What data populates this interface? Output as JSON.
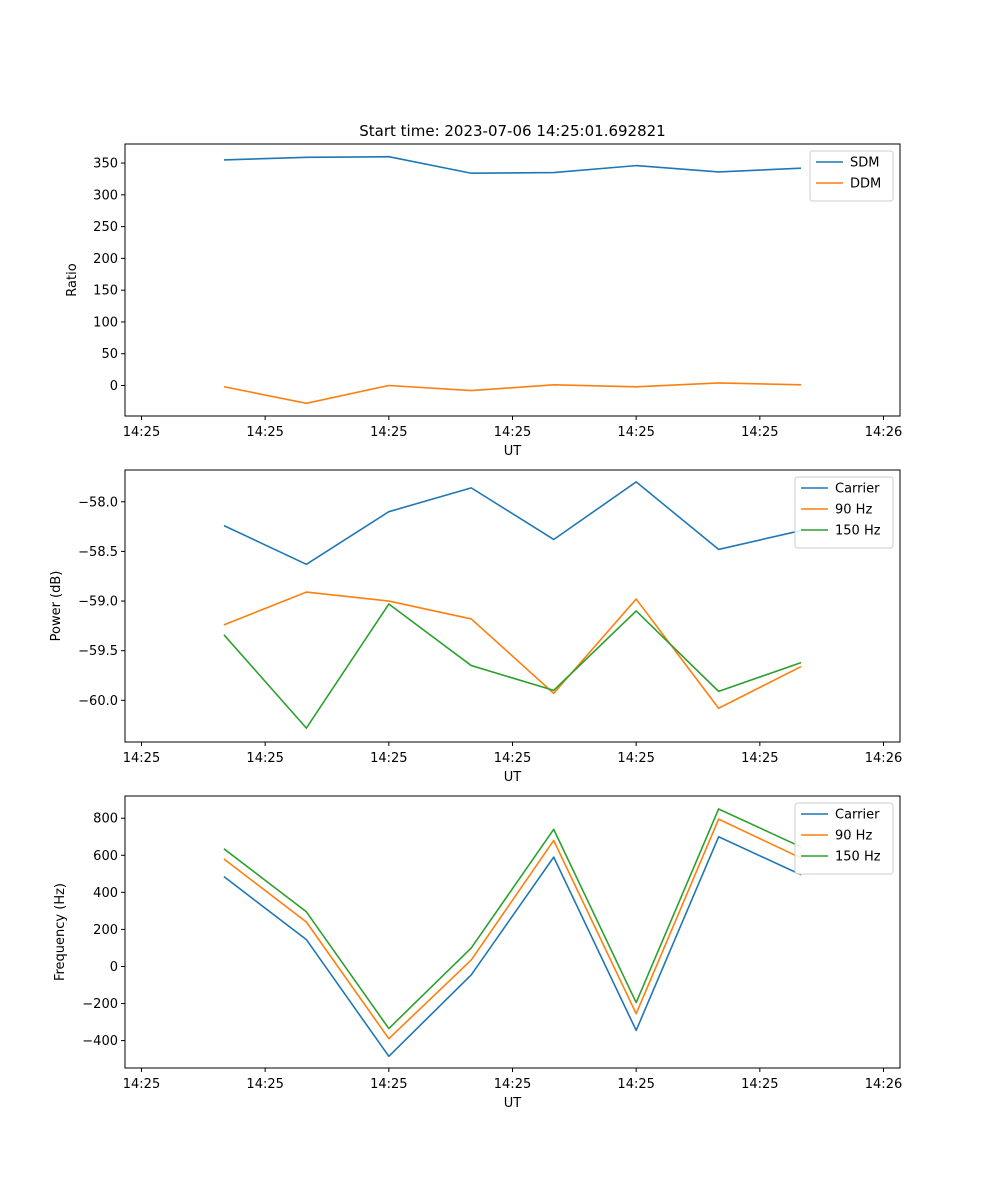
{
  "figure": {
    "title": "Start time: 2023-07-06 14:25:01.692821"
  },
  "chart_data": [
    {
      "type": "line",
      "xlabel": "UT",
      "ylabel": "Ratio",
      "xlim": [
        -0.2,
        9.2
      ],
      "ylim": [
        -48,
        380
      ],
      "x": [
        1,
        2,
        3,
        4,
        5,
        6,
        7,
        8
      ],
      "xtick_values": [
        0,
        1.5,
        3,
        4.5,
        6,
        7.5,
        9
      ],
      "xtick_labels": [
        "14:25",
        "14:25",
        "14:25",
        "14:25",
        "14:25",
        "14:25",
        "14:26"
      ],
      "ytick_values": [
        0,
        50,
        100,
        150,
        200,
        250,
        300,
        350
      ],
      "ytick_labels": [
        "0",
        "50",
        "100",
        "150",
        "200",
        "250",
        "300",
        "350"
      ],
      "series": [
        {
          "name": "SDM",
          "color": "#1f77b4",
          "values": [
            355,
            359,
            360,
            334,
            335,
            346,
            336,
            342
          ]
        },
        {
          "name": "DDM",
          "color": "#ff7f0e",
          "values": [
            -2,
            -28,
            0,
            -8,
            1,
            -2,
            4,
            1
          ]
        }
      ]
    },
    {
      "type": "line",
      "xlabel": "UT",
      "ylabel": "Power (dB)",
      "xlim": [
        -0.2,
        9.2
      ],
      "ylim": [
        -60.42,
        -57.68
      ],
      "x": [
        1,
        2,
        3,
        4,
        5,
        6,
        7,
        8
      ],
      "xtick_values": [
        0,
        1.5,
        3,
        4.5,
        6,
        7.5,
        9
      ],
      "xtick_labels": [
        "14:25",
        "14:25",
        "14:25",
        "14:25",
        "14:25",
        "14:25",
        "14:26"
      ],
      "ytick_values": [
        -58.0,
        -58.5,
        -59.0,
        -59.5,
        -60.0
      ],
      "ytick_labels": [
        "−58.0",
        "−58.5",
        "−59.0",
        "−59.5",
        "−60.0"
      ],
      "series": [
        {
          "name": "Carrier",
          "color": "#1f77b4",
          "values": [
            -58.24,
            -58.63,
            -58.1,
            -57.86,
            -58.38,
            -57.8,
            -58.48,
            -58.29
          ]
        },
        {
          "name": "90 Hz",
          "color": "#ff7f0e",
          "values": [
            -59.24,
            -58.91,
            -59.0,
            -59.18,
            -59.93,
            -58.98,
            -60.08,
            -59.66
          ]
        },
        {
          "name": "150 Hz",
          "color": "#2ca02c",
          "values": [
            -59.34,
            -60.28,
            -59.03,
            -59.65,
            -59.9,
            -59.1,
            -59.91,
            -59.62
          ]
        }
      ]
    },
    {
      "type": "line",
      "xlabel": "UT",
      "ylabel": "Frequency (Hz)",
      "xlim": [
        -0.2,
        9.2
      ],
      "ylim": [
        -548,
        920
      ],
      "x": [
        1,
        2,
        3,
        4,
        5,
        6,
        7,
        8
      ],
      "xtick_values": [
        0,
        1.5,
        3,
        4.5,
        6,
        7.5,
        9
      ],
      "xtick_labels": [
        "14:25",
        "14:25",
        "14:25",
        "14:25",
        "14:25",
        "14:25",
        "14:26"
      ],
      "ytick_values": [
        -400,
        -200,
        0,
        200,
        400,
        600,
        800
      ],
      "ytick_labels": [
        "−400",
        "−200",
        "0",
        "200",
        "400",
        "600",
        "800"
      ],
      "series": [
        {
          "name": "Carrier",
          "color": "#1f77b4",
          "values": [
            485,
            145,
            -485,
            -45,
            590,
            -345,
            700,
            495
          ]
        },
        {
          "name": "90 Hz",
          "color": "#ff7f0e",
          "values": [
            580,
            240,
            -390,
            35,
            680,
            -255,
            795,
            585
          ]
        },
        {
          "name": "150 Hz",
          "color": "#2ca02c",
          "values": [
            635,
            295,
            -335,
            100,
            740,
            -195,
            850,
            645
          ]
        }
      ]
    }
  ]
}
